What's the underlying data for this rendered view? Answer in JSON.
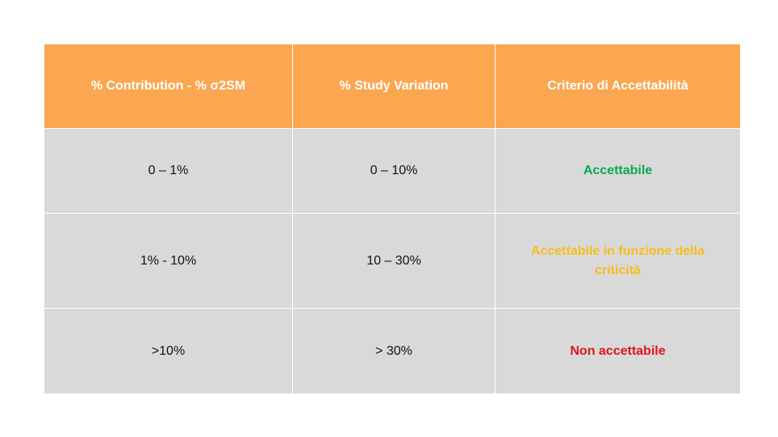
{
  "table": {
    "headers": [
      "% Contribution - % σ2SM",
      "% Study Variation",
      "Criterio di Accettabilità"
    ],
    "rows": [
      {
        "contribution": "0 – 1%",
        "study_variation": "0 – 10%",
        "criterio": "Accettabile",
        "criterio_color": "#0aa84f"
      },
      {
        "contribution": "1% - 10%",
        "study_variation": "10 – 30%",
        "criterio": "Accettabile in funzione della criticità",
        "criterio_color": "#f5be1a"
      },
      {
        "contribution": ">10%",
        "study_variation": "> 30%",
        "criterio": "Non accettabile",
        "criterio_color": "#e0141b"
      }
    ],
    "header_color": "#fba650",
    "cell_color": "#d9d9d9"
  }
}
